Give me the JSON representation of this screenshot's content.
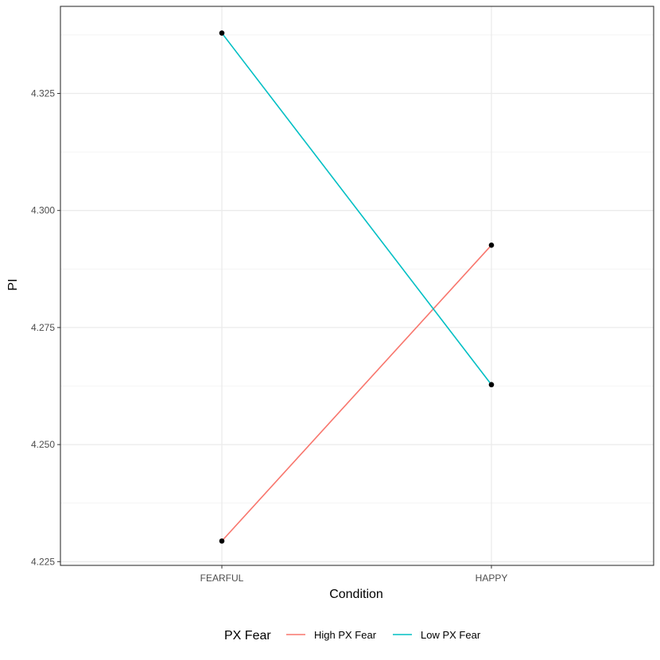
{
  "chart_data": {
    "type": "line",
    "xlabel": "Condition",
    "ylabel": "PI",
    "categories": [
      "FEARFUL",
      "HAPPY"
    ],
    "ylim": [
      4.2242,
      4.3436
    ],
    "yticks": [
      4.225,
      4.25,
      4.275,
      4.3,
      4.325
    ],
    "ytick_labels": [
      "4.225",
      "4.250",
      "4.275",
      "4.300",
      "4.325"
    ],
    "grid": true,
    "legend": {
      "title": "PX Fear",
      "position": "bottom"
    },
    "series": [
      {
        "name": "High PX Fear",
        "color": "#F8766D",
        "values": [
          4.2294,
          4.2926
        ]
      },
      {
        "name": "Low PX Fear",
        "color": "#00BFC4",
        "values": [
          4.3379,
          4.2628
        ]
      }
    ],
    "point_color": "#000000"
  }
}
